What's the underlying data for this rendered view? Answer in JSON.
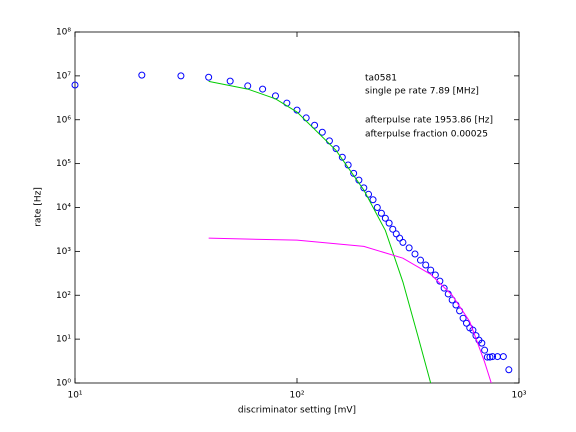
{
  "chart_data": {
    "type": "scatter",
    "xlabel": "discriminator setting [mV]",
    "ylabel": "rate [Hz]",
    "annotations": [
      "ta0581",
      "single pe rate 7.89 [MHz]",
      "afterpulse rate 1953.86 [Hz]",
      "afterpulse fraction 0.00025"
    ],
    "xscale": "log",
    "yscale": "log",
    "xlim": [
      10,
      1000
    ],
    "ylim": [
      1,
      100000000
    ],
    "xticks": [
      {
        "value": 10,
        "label": "10¹"
      },
      {
        "value": 100,
        "label": "10²"
      },
      {
        "value": 1000,
        "label": "10³"
      }
    ],
    "yticks": [
      {
        "value": 1,
        "label": "10⁰"
      },
      {
        "value": 10,
        "label": "10¹"
      },
      {
        "value": 100,
        "label": "10²"
      },
      {
        "value": 1000,
        "label": "10³"
      },
      {
        "value": 10000,
        "label": "10⁴"
      },
      {
        "value": 100000,
        "label": "10⁵"
      },
      {
        "value": 1000000,
        "label": "10⁶"
      },
      {
        "value": 10000000,
        "label": "10⁷"
      },
      {
        "value": 100000000,
        "label": "10⁸"
      }
    ],
    "series": [
      {
        "style": "markers",
        "color": "#0000ff",
        "x": [
          10,
          20,
          30,
          40,
          50,
          60,
          70,
          80,
          90,
          100,
          110,
          120,
          130,
          140,
          150,
          160,
          170,
          180,
          190,
          200,
          210,
          220,
          230,
          240,
          250,
          260,
          270,
          280,
          290,
          300,
          320,
          340,
          360,
          380,
          400,
          420,
          440,
          460,
          480,
          500,
          520,
          540,
          560,
          580,
          600,
          620,
          640,
          660,
          680,
          700,
          720,
          740,
          760,
          800,
          850,
          900
        ],
        "values": [
          6200000,
          10400000,
          10000000,
          9300000,
          7600000,
          5900000,
          5000000,
          3500000,
          2400000,
          1660000,
          1100000,
          750000,
          520000,
          330000,
          220000,
          140000,
          93000,
          60000,
          42000,
          28000,
          20000,
          15000,
          10000,
          7400,
          5700,
          4400,
          3200,
          2500,
          2000,
          1600,
          1200,
          870,
          630,
          490,
          375,
          290,
          210,
          145,
          107,
          78,
          60,
          44,
          30,
          23,
          18,
          16,
          12,
          9.5,
          8.1,
          5.6,
          3.9,
          3.9,
          4,
          4,
          4,
          2
        ]
      },
      {
        "style": "line",
        "color": "#00cc00",
        "x": [
          40,
          60,
          80,
          100,
          150,
          200,
          250,
          300,
          350,
          400
        ],
        "values": [
          7500000,
          5000000,
          3000000,
          1500000,
          200000,
          25000,
          3000,
          200,
          12,
          1
        ]
      },
      {
        "style": "line",
        "color": "#ff00ff",
        "x": [
          40,
          100,
          200,
          300,
          400,
          500,
          600,
          700,
          750
        ],
        "values": [
          2000,
          1800,
          1300,
          700,
          300,
          100,
          25,
          3,
          1
        ]
      }
    ]
  }
}
